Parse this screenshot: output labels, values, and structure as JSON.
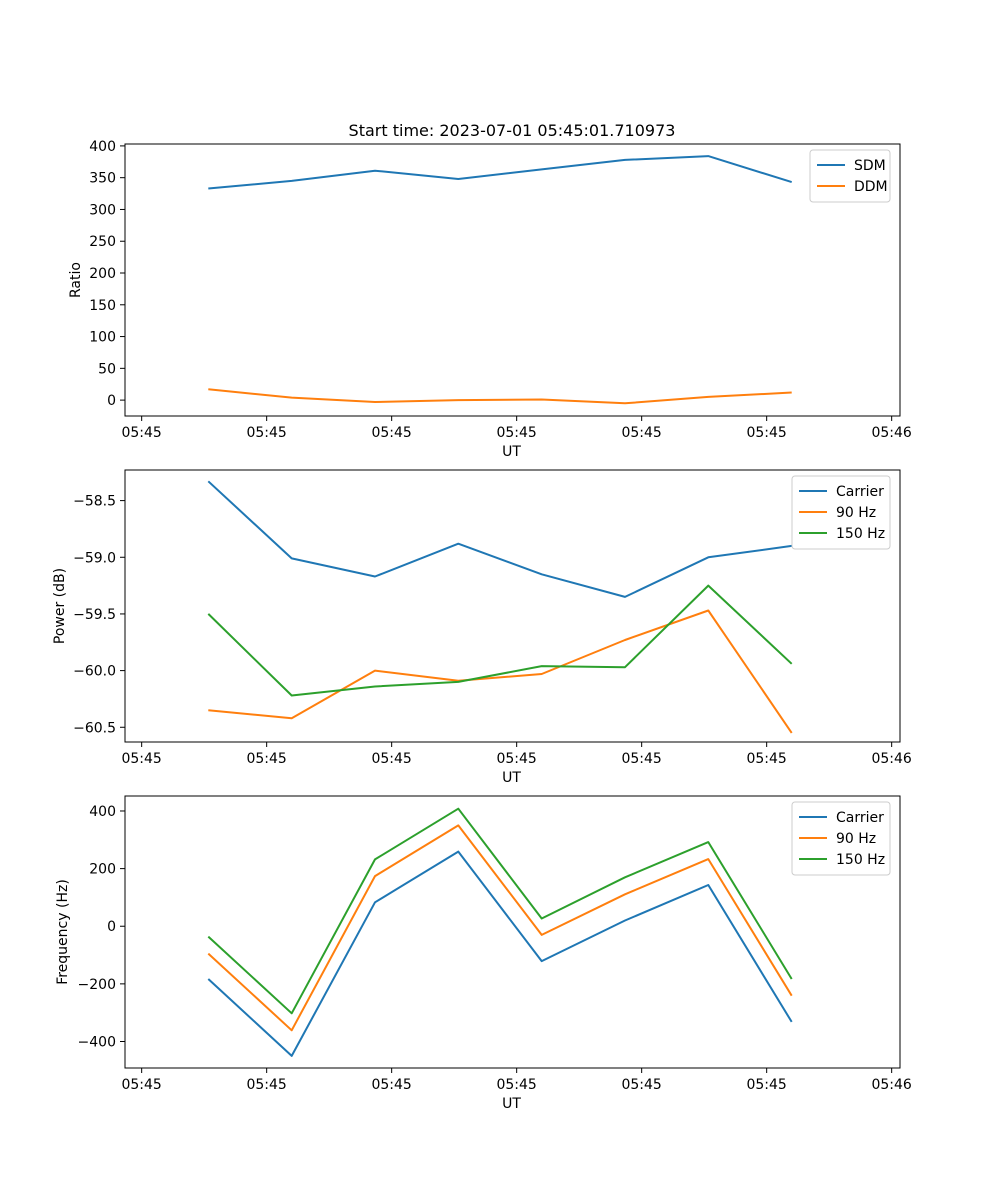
{
  "figure_title": "Start time: 2023-07-01 05:45:01.710973",
  "colors": {
    "blue": "#1f77b4",
    "orange": "#ff7f0e",
    "green": "#2ca02c"
  },
  "chart_data": [
    {
      "type": "line",
      "title": "Start time: 2023-07-01 05:45:01.710973",
      "xlabel": "UT",
      "ylabel": "Ratio",
      "legend_position": "top-right",
      "xlim": [
        0,
        9.3
      ],
      "ylim": [
        -25,
        403
      ],
      "x_ticks": [
        0.2,
        1.7,
        3.2,
        4.7,
        6.2,
        7.7,
        9.2
      ],
      "x_tick_labels": [
        "05:45",
        "05:45",
        "05:45",
        "05:45",
        "05:45",
        "05:45",
        "05:46"
      ],
      "y_ticks": [
        0,
        50,
        100,
        150,
        200,
        250,
        300,
        350,
        400
      ],
      "y_tick_labels": [
        "0",
        "50",
        "100",
        "150",
        "200",
        "250",
        "300",
        "350",
        "400"
      ],
      "x": [
        1,
        2,
        3,
        4,
        5,
        6,
        7,
        8
      ],
      "series": [
        {
          "name": "SDM",
          "color": "#1f77b4",
          "values": [
            333,
            345,
            361,
            348,
            363,
            378,
            384,
            343
          ]
        },
        {
          "name": "DDM",
          "color": "#ff7f0e",
          "values": [
            17,
            4,
            -3,
            0,
            1,
            -5,
            5,
            12
          ]
        }
      ]
    },
    {
      "type": "line",
      "title": "",
      "xlabel": "UT",
      "ylabel": "Power (dB)",
      "legend_position": "top-right",
      "xlim": [
        0,
        9.3
      ],
      "ylim": [
        -60.63,
        -58.23
      ],
      "x_ticks": [
        0.2,
        1.7,
        3.2,
        4.7,
        6.2,
        7.7,
        9.2
      ],
      "x_tick_labels": [
        "05:45",
        "05:45",
        "05:45",
        "05:45",
        "05:45",
        "05:45",
        "05:46"
      ],
      "y_ticks": [
        -58.5,
        -59.0,
        -59.5,
        -60.0,
        -60.5
      ],
      "y_tick_labels": [
        "−58.5",
        "−59.0",
        "−59.5",
        "−60.0",
        "−60.5"
      ],
      "x": [
        1,
        2,
        3,
        4,
        5,
        6,
        7,
        8
      ],
      "series": [
        {
          "name": "Carrier",
          "color": "#1f77b4",
          "values": [
            -58.33,
            -59.01,
            -59.17,
            -58.88,
            -59.15,
            -59.35,
            -59.0,
            -58.9
          ]
        },
        {
          "name": "90 Hz",
          "color": "#ff7f0e",
          "values": [
            -60.35,
            -60.42,
            -60.0,
            -60.09,
            -60.03,
            -59.73,
            -59.47,
            -60.55
          ]
        },
        {
          "name": "150 Hz",
          "color": "#2ca02c",
          "values": [
            -59.5,
            -60.22,
            -60.14,
            -60.1,
            -59.96,
            -59.97,
            -59.25,
            -59.94
          ]
        }
      ]
    },
    {
      "type": "line",
      "title": "",
      "xlabel": "UT",
      "ylabel": "Frequency (Hz)",
      "legend_position": "top-right",
      "xlim": [
        0,
        9.3
      ],
      "ylim": [
        -492,
        452
      ],
      "x_ticks": [
        0.2,
        1.7,
        3.2,
        4.7,
        6.2,
        7.7,
        9.2
      ],
      "x_tick_labels": [
        "05:45",
        "05:45",
        "05:45",
        "05:45",
        "05:45",
        "05:45",
        "05:46"
      ],
      "y_ticks": [
        400,
        200,
        0,
        -200,
        -400
      ],
      "y_tick_labels": [
        "400",
        "200",
        "0",
        "−200",
        "−400"
      ],
      "x": [
        1,
        2,
        3,
        4,
        5,
        6,
        7,
        8
      ],
      "series": [
        {
          "name": "Carrier",
          "color": "#1f77b4",
          "values": [
            -183,
            -450,
            83,
            259,
            -121,
            20,
            143,
            -332
          ]
        },
        {
          "name": "90 Hz",
          "color": "#ff7f0e",
          "values": [
            -95,
            -361,
            174,
            350,
            -30,
            111,
            233,
            -241
          ]
        },
        {
          "name": "150 Hz",
          "color": "#2ca02c",
          "values": [
            -36,
            -302,
            232,
            408,
            27,
            170,
            292,
            -183
          ]
        }
      ]
    }
  ]
}
